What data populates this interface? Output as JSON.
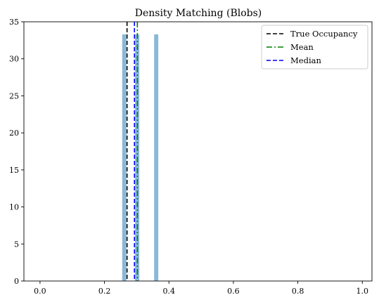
{
  "chart_data": {
    "type": "bar",
    "title": "Density Matching (Blobs)",
    "xlabel": "",
    "ylabel": "",
    "xlim": [
      -0.05,
      1.03
    ],
    "ylim": [
      0,
      35
    ],
    "xticks": [
      0.0,
      0.2,
      0.4,
      0.6,
      0.8,
      1.0
    ],
    "xtick_labels": [
      "0.0",
      "0.2",
      "0.4",
      "0.6",
      "0.8",
      "1.0"
    ],
    "yticks": [
      0,
      5,
      10,
      15,
      20,
      25,
      30,
      35
    ],
    "ytick_labels": [
      "0",
      "5",
      "10",
      "15",
      "20",
      "25",
      "30",
      "35"
    ],
    "grid": false,
    "bars": [
      {
        "x0": 0.255,
        "x1": 0.268,
        "value": 33.3
      },
      {
        "x0": 0.295,
        "x1": 0.308,
        "value": 33.3
      },
      {
        "x0": 0.354,
        "x1": 0.367,
        "value": 33.3
      }
    ],
    "bar_color": "#8ab8d8",
    "vlines": [
      {
        "name": "True Occupancy",
        "x": 0.27,
        "color": "#000000",
        "style": "dashed"
      },
      {
        "name": "Mean",
        "x": 0.302,
        "color": "#008000",
        "style": "dashdot"
      },
      {
        "name": "Median",
        "x": 0.293,
        "color": "#0000ff",
        "style": "dashed"
      }
    ],
    "legend": {
      "placement": "top-right",
      "entries": [
        "True Occupancy",
        "Mean",
        "Median"
      ]
    }
  }
}
